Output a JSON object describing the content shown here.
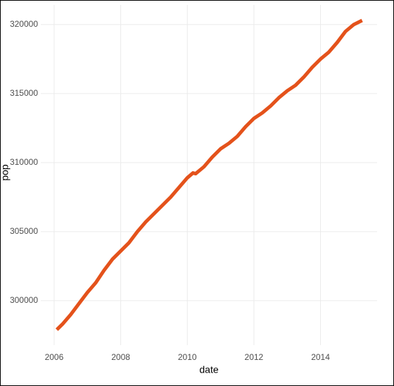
{
  "chart_data": {
    "type": "line",
    "x_label": "date",
    "y_label": "pop",
    "x": [
      2006.08,
      2006.25,
      2006.5,
      2006.75,
      2007.0,
      2007.25,
      2007.5,
      2007.75,
      2008.0,
      2008.25,
      2008.5,
      2008.75,
      2009.0,
      2009.25,
      2009.5,
      2009.75,
      2010.0,
      2010.17,
      2010.25,
      2010.5,
      2010.75,
      2011.0,
      2011.25,
      2011.5,
      2011.75,
      2012.0,
      2012.25,
      2012.5,
      2012.75,
      2013.0,
      2013.25,
      2013.5,
      2013.75,
      2014.0,
      2014.25,
      2014.5,
      2014.75,
      2015.0,
      2015.25
    ],
    "series": [
      {
        "name": "pop",
        "color": "#e4521b",
        "values": [
          297900,
          298300,
          299000,
          299800,
          300600,
          301300,
          302200,
          303000,
          303600,
          304200,
          305000,
          305700,
          306300,
          306900,
          307500,
          308200,
          308900,
          309250,
          309200,
          309700,
          310400,
          311000,
          311400,
          311900,
          312600,
          313200,
          313600,
          314100,
          314700,
          315200,
          315600,
          316200,
          316900,
          317500,
          318000,
          318700,
          319500,
          320000,
          320300
        ]
      }
    ],
    "xlim": [
      2005.6,
      2015.7
    ],
    "xticks": [
      2006,
      2008,
      2010,
      2012,
      2014
    ],
    "ylim": [
      296780,
      321420
    ],
    "yticks": [
      300000,
      305000,
      310000,
      315000,
      320000
    ],
    "grid": true
  }
}
